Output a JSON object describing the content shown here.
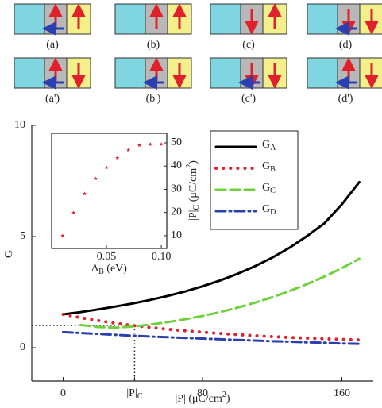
{
  "panels": [
    "(a)",
    "(b)",
    "(c)",
    "(d)",
    "(a')",
    "(b')",
    "(c')",
    "(d')"
  ],
  "chart_data": [
    {
      "type": "line",
      "xlabel": "|P| (μC/cm^2)",
      "ylabel": "G",
      "x": [
        0,
        10,
        20,
        30,
        40,
        50,
        60,
        70,
        80,
        90,
        100,
        110,
        120,
        130,
        140,
        150,
        160,
        170
      ],
      "xlim": [
        -18,
        178
      ],
      "ylim": [
        -1.5,
        10
      ],
      "xticks": [
        0,
        {
          "value": 41,
          "label": "|P|_C"
        },
        80,
        160
      ],
      "yticks": [
        0,
        5,
        10
      ],
      "reference_y": 1,
      "series": [
        {
          "name": "G_A",
          "color": "#000000",
          "style": "solid",
          "values": [
            1.5,
            1.6,
            1.72,
            1.85,
            1.99,
            2.15,
            2.33,
            2.53,
            2.76,
            3.02,
            3.32,
            3.66,
            4.05,
            4.5,
            5.02,
            5.6,
            6.45,
            7.45
          ]
        },
        {
          "name": "G_B",
          "color": "#e0202a",
          "style": "dotted",
          "values": [
            1.5,
            1.35,
            1.22,
            1.1,
            1.0,
            0.91,
            0.83,
            0.76,
            0.7,
            0.64,
            0.59,
            0.54,
            0.5,
            0.46,
            0.43,
            0.4,
            0.37,
            0.35
          ]
        },
        {
          "name": "G_C",
          "color": "#6fd13a",
          "style": "dashed",
          "values": [
            null,
            1.02,
            0.93,
            0.9,
            0.95,
            1.04,
            1.15,
            1.28,
            1.43,
            1.6,
            1.8,
            2.02,
            2.27,
            2.55,
            2.86,
            3.2,
            3.58,
            4.0
          ]
        },
        {
          "name": "G_D",
          "color": "#2a3fb0",
          "style": "dashdot",
          "values": [
            0.7,
            0.66,
            0.62,
            0.58,
            0.54,
            0.5,
            0.47,
            0.44,
            0.41,
            0.38,
            0.35,
            0.32,
            0.29,
            0.27,
            0.24,
            0.22,
            0.19,
            0.17
          ]
        }
      ]
    },
    {
      "type": "scatter",
      "xlabel": "Δ_B (eV)",
      "ylabel": "|P|_C (μC/cm^2)",
      "x": [
        0.01,
        0.02,
        0.03,
        0.04,
        0.05,
        0.06,
        0.07,
        0.08,
        0.09,
        0.1
      ],
      "values": [
        10,
        19.9,
        28.1,
        34.6,
        39.4,
        43.5,
        46.9,
        49,
        49.4,
        49.4
      ],
      "color": "#e0202a",
      "xlim": [
        0,
        0.105
      ],
      "ylim": [
        4.5,
        54.1
      ],
      "xticks": [
        0.05,
        {
          "value": 0.1,
          "label": "0.10"
        }
      ],
      "yticks": [
        10,
        20,
        30,
        40,
        50
      ]
    }
  ]
}
